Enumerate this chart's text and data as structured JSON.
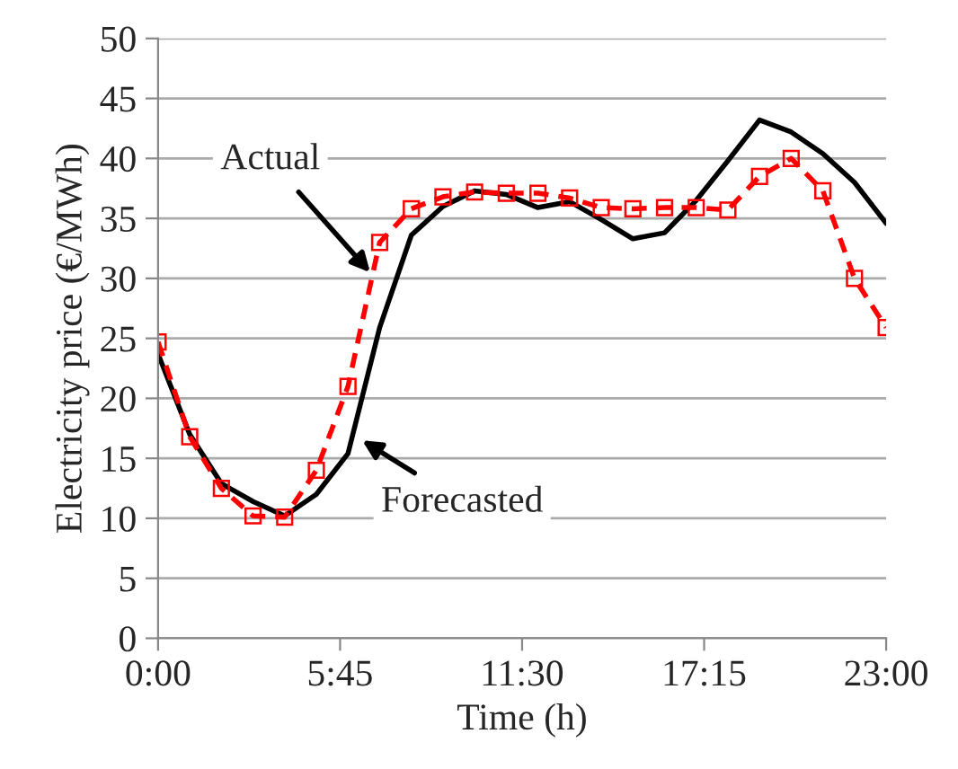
{
  "chart_data": {
    "type": "line",
    "xlabel": "Time (h)",
    "ylabel": "Electricity price (€/MWh)",
    "x": [
      0,
      1,
      2,
      3,
      4,
      5,
      6,
      7,
      8,
      9,
      10,
      11,
      12,
      13,
      14,
      15,
      16,
      17,
      18,
      19,
      20,
      21,
      22,
      23
    ],
    "series": [
      {
        "color": "#000000",
        "line_style": "solid",
        "marker": "none",
        "values": [
          23.7,
          17.0,
          12.9,
          11.4,
          10.2,
          12.0,
          15.4,
          25.9,
          33.6,
          36.0,
          37.3,
          37.0,
          35.9,
          36.4,
          34.9,
          33.3,
          33.8,
          36.5,
          39.8,
          43.2,
          42.2,
          40.4,
          38.0,
          34.6
        ]
      },
      {
        "color": "#ff0000",
        "line_style": "dashed",
        "marker": "square",
        "values": [
          24.7,
          16.8,
          12.5,
          10.2,
          10.1,
          14.0,
          21.0,
          33.0,
          35.8,
          36.8,
          37.2,
          37.1,
          37.1,
          36.7,
          35.9,
          35.8,
          35.9,
          35.9,
          35.7,
          38.5,
          40.0,
          37.3,
          30.0,
          25.9
        ]
      }
    ],
    "annotations": [
      {
        "text": "Actual",
        "x": 6.7,
        "y": 30.5
      },
      {
        "text": "Forecasted",
        "x": 6.45,
        "y": 16.5
      }
    ],
    "xlim": [
      0,
      23
    ],
    "xticks": [
      {
        "value": 0,
        "label": "0:00"
      },
      {
        "value": 5.75,
        "label": "5:45"
      },
      {
        "value": 11.5,
        "label": "11:30"
      },
      {
        "value": 17.25,
        "label": "17:15"
      },
      {
        "value": 23,
        "label": "23:00"
      }
    ],
    "ylim": [
      0,
      50
    ],
    "yticks": [
      0,
      5,
      10,
      15,
      20,
      25,
      30,
      35,
      40,
      45,
      50
    ],
    "grid": "y"
  }
}
